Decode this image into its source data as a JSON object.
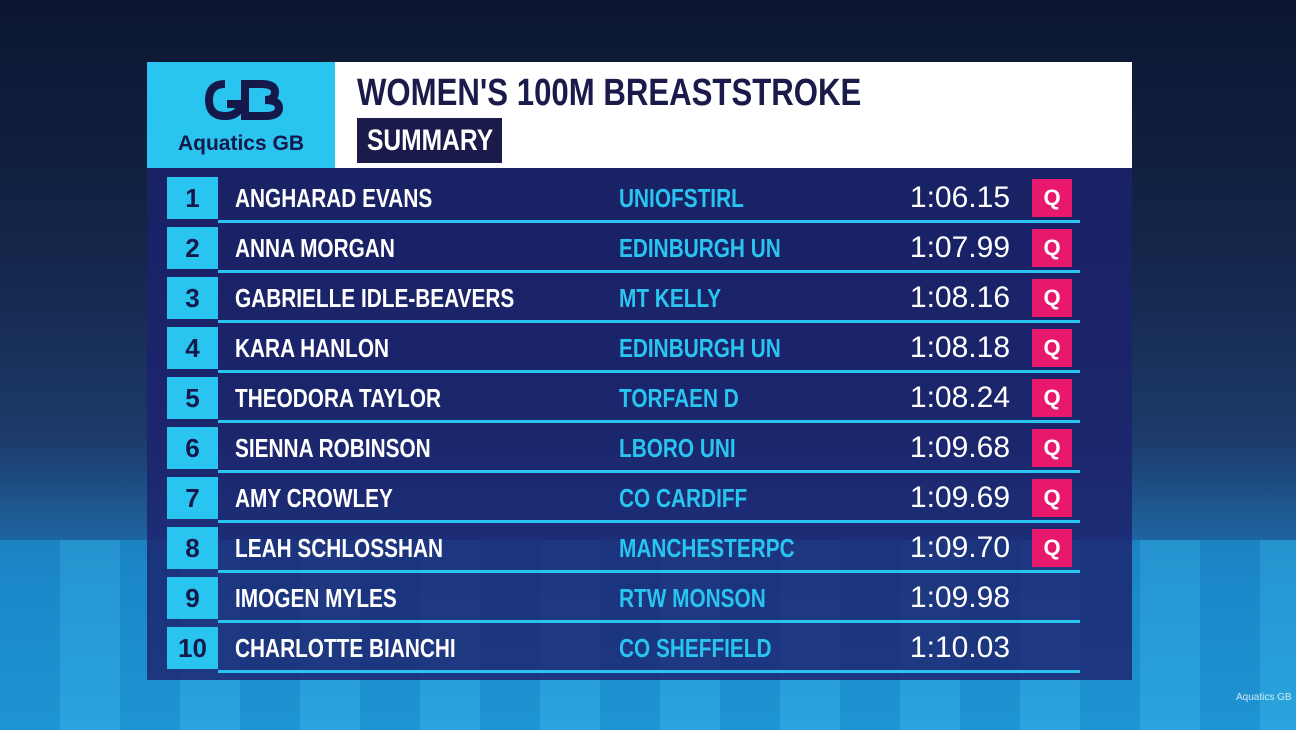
{
  "header": {
    "logo_text": "Aquatics GB",
    "title": "WOMEN'S 100M BREASTSTROKE",
    "subtitle": "SUMMARY"
  },
  "table": {
    "rows": [
      {
        "rank": "1",
        "name": "ANGHARAD EVANS",
        "club": "UNIOFSTIRL",
        "time": "1:06.15",
        "q": "Q"
      },
      {
        "rank": "2",
        "name": "ANNA MORGAN",
        "club": "EDINBURGH UN",
        "time": "1:07.99",
        "q": "Q"
      },
      {
        "rank": "3",
        "name": "GABRIELLE IDLE-BEAVERS",
        "club": "MT KELLY",
        "time": "1:08.16",
        "q": "Q"
      },
      {
        "rank": "4",
        "name": "KARA HANLON",
        "club": "EDINBURGH UN",
        "time": "1:08.18",
        "q": "Q"
      },
      {
        "rank": "5",
        "name": "THEODORA TAYLOR",
        "club": "TORFAEN D",
        "time": "1:08.24",
        "q": "Q"
      },
      {
        "rank": "6",
        "name": "SIENNA ROBINSON",
        "club": "LBORO UNI",
        "time": "1:09.68",
        "q": "Q"
      },
      {
        "rank": "7",
        "name": "AMY CROWLEY",
        "club": "CO CARDIFF",
        "time": "1:09.69",
        "q": "Q"
      },
      {
        "rank": "8",
        "name": "LEAH SCHLOSSHAN",
        "club": "MANCHESTERPC",
        "time": "1:09.70",
        "q": "Q"
      },
      {
        "rank": "9",
        "name": "IMOGEN MYLES",
        "club": "RTW MONSON",
        "time": "1:09.98"
      },
      {
        "rank": "10",
        "name": "CHARLOTTE BIANCHI",
        "club": "CO SHEFFIELD",
        "time": "1:10.03"
      }
    ]
  },
  "watermark": "Aquatics GB"
}
